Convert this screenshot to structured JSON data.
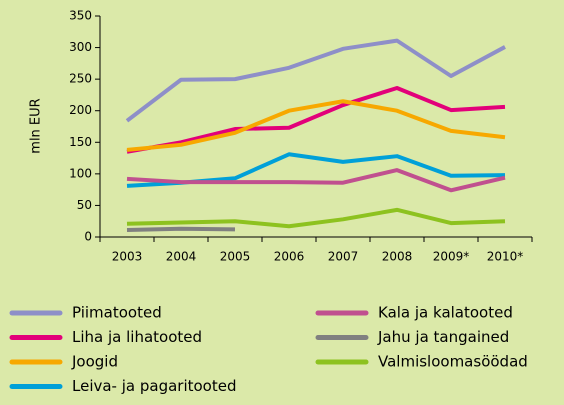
{
  "chart_data": {
    "type": "line",
    "ylabel": "mln EUR",
    "categories": [
      "2003",
      "2004",
      "2005",
      "2006",
      "2007",
      "2008",
      "2009*",
      "2010*"
    ],
    "ylim": [
      0,
      350
    ],
    "yticks": [
      0,
      50,
      100,
      150,
      200,
      250,
      300,
      350
    ],
    "series": [
      {
        "name": "Piimatooted",
        "color": "#8e8fc8",
        "values": [
          184,
          249,
          250,
          268,
          298,
          311,
          255,
          301
        ]
      },
      {
        "name": "Liha ja lihatooted",
        "color": "#e2007a",
        "values": [
          135,
          150,
          171,
          173,
          209,
          236,
          201,
          206
        ]
      },
      {
        "name": "Joogid",
        "color": "#f7a800",
        "values": [
          138,
          146,
          165,
          200,
          215,
          200,
          168,
          158
        ]
      },
      {
        "name": "Leiva- ja pagaritooted",
        "color": "#00a0d8",
        "values": [
          81,
          86,
          93,
          131,
          119,
          128,
          97,
          98
        ]
      },
      {
        "name": "Kala ja kalatooted",
        "color": "#c0508f",
        "values": [
          92,
          87,
          87,
          87,
          86,
          106,
          74,
          94
        ]
      },
      {
        "name": "Jahu ja tangained",
        "color": "#808080",
        "values": [
          11,
          13,
          12,
          null,
          null,
          null,
          null,
          null
        ]
      },
      {
        "name": "Valmisloomasöödad",
        "color": "#8dc21f",
        "values": [
          21,
          23,
          25,
          17,
          28,
          43,
          22,
          25
        ]
      }
    ]
  }
}
